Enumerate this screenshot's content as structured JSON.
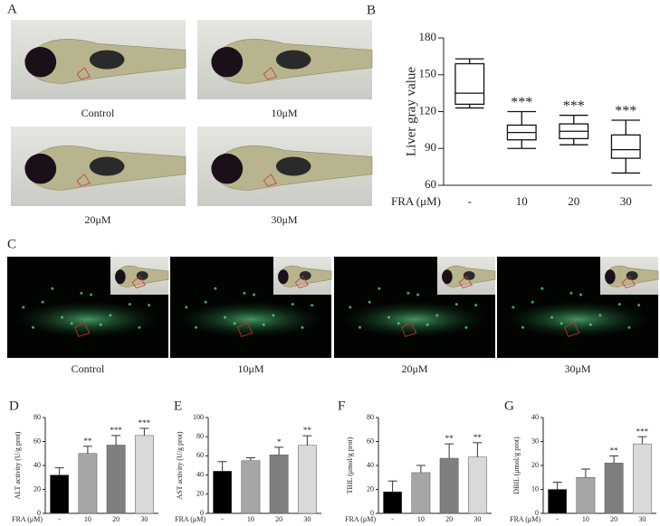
{
  "image_panels": [
    {
      "panel": "A",
      "captions": [
        "Control",
        "10μM",
        "20μM",
        "30μM"
      ]
    },
    {
      "panel": "C",
      "captions": [
        "Control",
        "10μM",
        "20μM",
        "30μM"
      ]
    }
  ],
  "chart_data": [
    {
      "type": "box",
      "panel": "B",
      "y_label": "Liver gray value",
      "x_label": "FRA (μM)",
      "categories": [
        "-",
        "10",
        "20",
        "30"
      ],
      "min": [
        123,
        90,
        93,
        70
      ],
      "q1": [
        126,
        97,
        98,
        82
      ],
      "median": [
        135,
        103,
        104,
        89
      ],
      "q3": [
        159,
        109,
        110,
        101
      ],
      "max": [
        163,
        120,
        117,
        113
      ],
      "significance": [
        null,
        "***",
        "***",
        "***"
      ],
      "ylim": [
        60,
        180
      ],
      "yticks": [
        60,
        90,
        120,
        150,
        180
      ]
    },
    {
      "type": "bar",
      "panel": "D",
      "y_label": "ALT activity (U/g prot)",
      "x_label": "FRA (μM)",
      "categories": [
        "-",
        "10",
        "20",
        "30"
      ],
      "values": [
        32,
        50,
        57,
        65
      ],
      "errors": [
        6,
        6,
        8,
        6
      ],
      "colors": [
        "#000000",
        "#a6a6a6",
        "#7f7f7f",
        "#d9d9d9"
      ],
      "significance": [
        null,
        "**",
        "***",
        "***"
      ],
      "ylim": [
        0,
        80
      ],
      "yticks": [
        0,
        20,
        40,
        60,
        80
      ]
    },
    {
      "type": "bar",
      "panel": "E",
      "y_label": "AST activity (U/g prot)",
      "x_label": "FRA (μM)",
      "categories": [
        "-",
        "10",
        "20",
        "30"
      ],
      "values": [
        44,
        55,
        61,
        71
      ],
      "errors": [
        10,
        3,
        8,
        10
      ],
      "colors": [
        "#000000",
        "#a6a6a6",
        "#7f7f7f",
        "#d9d9d9"
      ],
      "significance": [
        null,
        null,
        "*",
        "**"
      ],
      "ylim": [
        0,
        100
      ],
      "yticks": [
        0,
        20,
        40,
        60,
        80,
        100
      ]
    },
    {
      "type": "bar",
      "panel": "F",
      "y_label": "TBIL (μmol/g prot)",
      "x_label": "FRA (μM)",
      "categories": [
        "-",
        "10",
        "20",
        "30"
      ],
      "values": [
        18,
        34,
        46,
        47
      ],
      "errors": [
        9,
        6,
        12,
        12
      ],
      "colors": [
        "#000000",
        "#a6a6a6",
        "#7f7f7f",
        "#d9d9d9"
      ],
      "significance": [
        null,
        null,
        "**",
        "**"
      ],
      "ylim": [
        0,
        80
      ],
      "yticks": [
        0,
        20,
        40,
        60,
        80
      ]
    },
    {
      "type": "bar",
      "panel": "G",
      "y_label": "DBIL (μmol/g prot)",
      "x_label": "FRA (μM)",
      "categories": [
        "-",
        "10",
        "20",
        "30"
      ],
      "values": [
        10,
        15,
        21,
        29
      ],
      "errors": [
        3,
        3.5,
        3,
        3
      ],
      "colors": [
        "#000000",
        "#a6a6a6",
        "#7f7f7f",
        "#d9d9d9"
      ],
      "significance": [
        null,
        null,
        "**",
        "***"
      ],
      "ylim": [
        0,
        40
      ],
      "yticks": [
        0,
        10,
        20,
        30,
        40
      ]
    }
  ]
}
